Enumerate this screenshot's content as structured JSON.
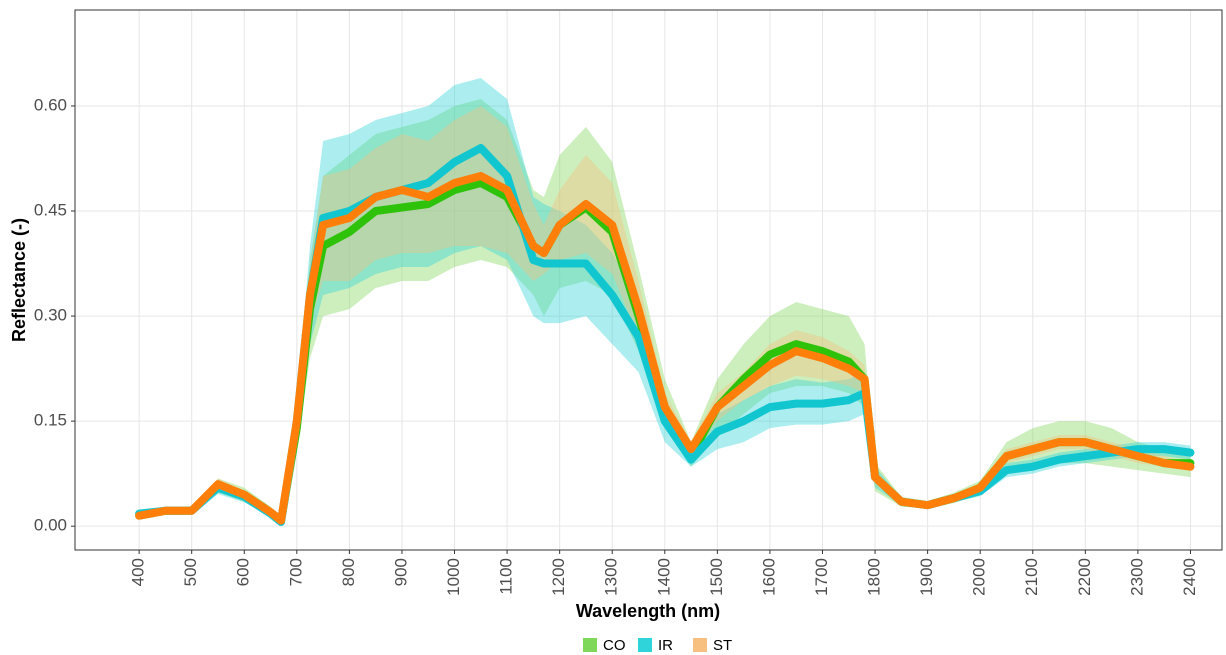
{
  "chart_data": {
    "type": "line_ribbon",
    "x_label": "Wavelength (nm)",
    "y_label": "Reflectance (-)",
    "xlim": [
      278,
      2460
    ],
    "ylim": [
      -0.034,
      0.737
    ],
    "xticks": [
      400,
      500,
      600,
      700,
      800,
      900,
      1000,
      1100,
      1200,
      1300,
      1400,
      1500,
      1600,
      1700,
      1800,
      1900,
      2000,
      2100,
      2200,
      2300,
      2400
    ],
    "yticks": [
      {
        "value": 0,
        "label": "0.00"
      },
      {
        "value": 0.15,
        "label": "0.15"
      },
      {
        "value": 0.3,
        "label": "0.30"
      },
      {
        "value": 0.45,
        "label": "0.45"
      },
      {
        "value": 0.6,
        "label": "0.60"
      }
    ],
    "grid": true,
    "x": [
      400,
      450,
      500,
      550,
      600,
      650,
      670,
      700,
      725,
      750,
      800,
      850,
      900,
      950,
      1000,
      1050,
      1100,
      1150,
      1170,
      1200,
      1250,
      1300,
      1350,
      1400,
      1450,
      1500,
      1550,
      1600,
      1650,
      1700,
      1750,
      1780,
      1800,
      1850,
      1900,
      1950,
      2000,
      2050,
      2100,
      2150,
      2200,
      2250,
      2300,
      2350,
      2400
    ],
    "series": [
      {
        "name": "CO",
        "color": "#2fc20a",
        "band_color": "#7fd85a",
        "values": [
          0.015,
          0.022,
          0.022,
          0.058,
          0.045,
          0.02,
          0.008,
          0.14,
          0.31,
          0.4,
          0.42,
          0.45,
          0.455,
          0.46,
          0.48,
          0.49,
          0.47,
          0.4,
          0.39,
          0.43,
          0.455,
          0.42,
          0.3,
          0.17,
          0.1,
          0.17,
          0.21,
          0.245,
          0.26,
          0.25,
          0.235,
          0.21,
          0.07,
          0.035,
          0.03,
          0.04,
          0.055,
          0.1,
          0.11,
          0.12,
          0.12,
          0.11,
          0.1,
          0.09,
          0.09
        ],
        "lower": [
          0.01,
          0.018,
          0.018,
          0.048,
          0.035,
          0.012,
          0.004,
          0.11,
          0.24,
          0.3,
          0.31,
          0.34,
          0.35,
          0.35,
          0.37,
          0.38,
          0.37,
          0.33,
          0.3,
          0.34,
          0.35,
          0.33,
          0.25,
          0.14,
          0.085,
          0.13,
          0.16,
          0.19,
          0.2,
          0.2,
          0.19,
          0.17,
          0.05,
          0.028,
          0.025,
          0.033,
          0.045,
          0.08,
          0.085,
          0.09,
          0.09,
          0.085,
          0.08,
          0.075,
          0.07
        ],
        "upper": [
          0.02,
          0.026,
          0.026,
          0.068,
          0.055,
          0.028,
          0.012,
          0.17,
          0.38,
          0.5,
          0.53,
          0.56,
          0.57,
          0.58,
          0.6,
          0.61,
          0.58,
          0.48,
          0.47,
          0.53,
          0.57,
          0.52,
          0.37,
          0.21,
          0.12,
          0.21,
          0.26,
          0.3,
          0.32,
          0.31,
          0.3,
          0.26,
          0.09,
          0.042,
          0.036,
          0.048,
          0.065,
          0.12,
          0.14,
          0.15,
          0.15,
          0.14,
          0.12,
          0.11,
          0.11
        ]
      },
      {
        "name": "IR",
        "color": "#12c6d0",
        "band_color": "#2fd4da",
        "values": [
          0.018,
          0.022,
          0.022,
          0.055,
          0.042,
          0.018,
          0.006,
          0.15,
          0.33,
          0.44,
          0.45,
          0.47,
          0.48,
          0.49,
          0.52,
          0.54,
          0.5,
          0.38,
          0.375,
          0.375,
          0.375,
          0.33,
          0.27,
          0.15,
          0.095,
          0.135,
          0.15,
          0.17,
          0.175,
          0.175,
          0.18,
          0.19,
          0.07,
          0.035,
          0.03,
          0.04,
          0.05,
          0.08,
          0.085,
          0.095,
          0.1,
          0.105,
          0.11,
          0.11,
          0.105
        ],
        "lower": [
          0.014,
          0.018,
          0.018,
          0.046,
          0.034,
          0.013,
          0.003,
          0.12,
          0.26,
          0.33,
          0.34,
          0.36,
          0.37,
          0.37,
          0.39,
          0.4,
          0.38,
          0.3,
          0.29,
          0.29,
          0.3,
          0.26,
          0.22,
          0.12,
          0.085,
          0.11,
          0.12,
          0.14,
          0.145,
          0.145,
          0.15,
          0.16,
          0.055,
          0.03,
          0.026,
          0.034,
          0.043,
          0.07,
          0.075,
          0.085,
          0.09,
          0.095,
          0.1,
          0.1,
          0.095
        ],
        "upper": [
          0.022,
          0.026,
          0.026,
          0.064,
          0.05,
          0.024,
          0.01,
          0.18,
          0.4,
          0.55,
          0.56,
          0.58,
          0.59,
          0.6,
          0.63,
          0.64,
          0.61,
          0.47,
          0.46,
          0.45,
          0.43,
          0.39,
          0.32,
          0.18,
          0.105,
          0.16,
          0.18,
          0.2,
          0.21,
          0.205,
          0.21,
          0.22,
          0.085,
          0.04,
          0.034,
          0.046,
          0.057,
          0.09,
          0.095,
          0.105,
          0.11,
          0.115,
          0.12,
          0.12,
          0.115
        ]
      },
      {
        "name": "ST",
        "color": "#ff7f0a",
        "band_color": "#f7c080",
        "values": [
          0.015,
          0.022,
          0.022,
          0.06,
          0.045,
          0.02,
          0.008,
          0.15,
          0.33,
          0.43,
          0.44,
          0.47,
          0.48,
          0.47,
          0.49,
          0.5,
          0.48,
          0.4,
          0.39,
          0.43,
          0.46,
          0.43,
          0.31,
          0.17,
          0.11,
          0.17,
          0.2,
          0.23,
          0.25,
          0.24,
          0.225,
          0.21,
          0.07,
          0.035,
          0.03,
          0.04,
          0.055,
          0.1,
          0.11,
          0.12,
          0.12,
          0.11,
          0.1,
          0.09,
          0.085
        ],
        "lower": [
          0.012,
          0.019,
          0.019,
          0.052,
          0.039,
          0.015,
          0.005,
          0.13,
          0.29,
          0.35,
          0.35,
          0.38,
          0.39,
          0.39,
          0.4,
          0.4,
          0.39,
          0.35,
          0.36,
          0.38,
          0.39,
          0.36,
          0.27,
          0.15,
          0.1,
          0.15,
          0.18,
          0.2,
          0.215,
          0.21,
          0.2,
          0.19,
          0.06,
          0.031,
          0.027,
          0.036,
          0.05,
          0.09,
          0.1,
          0.11,
          0.11,
          0.1,
          0.09,
          0.085,
          0.08
        ],
        "upper": [
          0.018,
          0.025,
          0.025,
          0.068,
          0.051,
          0.025,
          0.011,
          0.17,
          0.37,
          0.5,
          0.51,
          0.54,
          0.56,
          0.55,
          0.58,
          0.6,
          0.57,
          0.46,
          0.43,
          0.48,
          0.53,
          0.49,
          0.35,
          0.19,
          0.12,
          0.19,
          0.22,
          0.26,
          0.28,
          0.27,
          0.25,
          0.23,
          0.08,
          0.04,
          0.034,
          0.045,
          0.06,
          0.11,
          0.12,
          0.13,
          0.13,
          0.12,
          0.11,
          0.1,
          0.09
        ]
      }
    ]
  }
}
